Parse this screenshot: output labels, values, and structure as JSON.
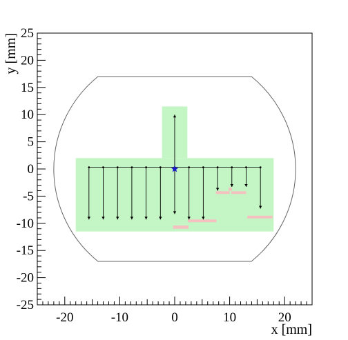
{
  "chart_data": {
    "type": "scatter",
    "title": "",
    "xlabel": "x [mm]",
    "ylabel": "y [mm]",
    "xlim": [
      -25,
      25
    ],
    "ylim": [
      -25,
      25
    ],
    "x_ticks": [
      -20,
      -10,
      0,
      10,
      20
    ],
    "y_ticks": [
      25,
      20,
      15,
      10,
      5,
      0,
      -5,
      -10,
      -15,
      -20,
      -25
    ],
    "grid": false,
    "legend": "none",
    "colors": {
      "region_fill": "#c4f5c4",
      "excluded_fill": "#f5c0c0",
      "outline": "#666666",
      "arrows": "#000000",
      "origin_marker": "#1a1acc"
    },
    "outline": {
      "circle_radius": 22,
      "flat_top_y": 17,
      "flat_bottom_y": -17
    },
    "scan_regions": [
      {
        "x": [
          -18,
          18
        ],
        "y": [
          -11.5,
          2
        ]
      },
      {
        "x": [
          -2.3,
          2.3
        ],
        "y": [
          2,
          11.5
        ]
      }
    ],
    "excluded_regions": [
      {
        "x": [
          -0.3,
          2.5
        ],
        "y": [
          -11,
          -10.4
        ]
      },
      {
        "x": [
          2.4,
          7.6
        ],
        "y": [
          -9.8,
          -9.3
        ]
      },
      {
        "x": [
          7.5,
          10
        ],
        "y": [
          -4.6,
          -4.1
        ]
      },
      {
        "x": [
          9.8,
          10.4
        ],
        "y": [
          -4,
          -3.4
        ]
      },
      {
        "x": [
          10.3,
          13
        ],
        "y": [
          -4.6,
          -4.1
        ]
      },
      {
        "x": [
          13.2,
          17.8
        ],
        "y": [
          -9.1,
          -8.6
        ]
      }
    ],
    "scan_arrows": [
      {
        "x": -15.6,
        "y_start": 0.3,
        "y_end": -9.3
      },
      {
        "x": -13,
        "y_start": 0.3,
        "y_end": -9.3
      },
      {
        "x": -10.4,
        "y_start": 0.3,
        "y_end": -9.3
      },
      {
        "x": -7.8,
        "y_start": 0.3,
        "y_end": -9.3
      },
      {
        "x": -5.2,
        "y_start": 0.3,
        "y_end": -9.3
      },
      {
        "x": -2.6,
        "y_start": 0.3,
        "y_end": -9.3
      },
      {
        "x": 0,
        "y_start": 0.3,
        "y_end": 10
      },
      {
        "x": 0,
        "y_start": 0,
        "y_end": -8.3
      },
      {
        "x": 2.6,
        "y_start": 0.3,
        "y_end": -9.3
      },
      {
        "x": 5.2,
        "y_start": 0.3,
        "y_end": -9.3
      },
      {
        "x": 7.8,
        "y_start": 0.3,
        "y_end": -4
      },
      {
        "x": 10.4,
        "y_start": 0.3,
        "y_end": -3.3
      },
      {
        "x": 13,
        "y_start": 0.3,
        "y_end": -3.3
      },
      {
        "x": 15.6,
        "y_start": 0.3,
        "y_end": -7.3
      }
    ],
    "row_line": {
      "x_start": -15.6,
      "x_end": 15.6,
      "y": 0.3
    },
    "origin_marker": {
      "x": 0,
      "y": 0,
      "symbol": "star"
    }
  }
}
